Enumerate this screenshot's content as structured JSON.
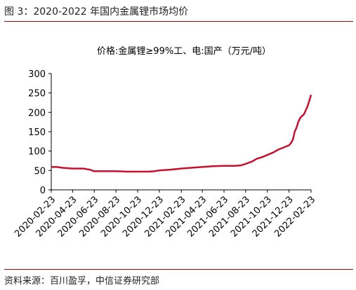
{
  "figure": {
    "title": "图 3：2020-2022 年国内金属锂市场均价",
    "source": "资料来源：百川盈孚，中信证券研究部"
  },
  "colors": {
    "rule": "#b30000",
    "series": "#c8102e",
    "axis": "#000000"
  },
  "chart_data": {
    "type": "line",
    "title": "价格:金属锂≥99%工、电:国产（万元/吨）",
    "xlabel": "",
    "ylabel": "",
    "ylim": [
      0,
      300
    ],
    "yticks": [
      0,
      50,
      100,
      150,
      200,
      250,
      300
    ],
    "xtick_labels": [
      "2020-02-23",
      "2020-04-23",
      "2020-06-23",
      "2020-08-23",
      "2020-10-23",
      "2020-12-23",
      "2021-02-23",
      "2021-04-23",
      "2021-06-23",
      "2021-08-23",
      "2021-10-23",
      "2021-12-23",
      "2022-02-23"
    ],
    "grid": false,
    "legend": "none",
    "series": [
      {
        "name": "价格:金属锂≥99%工、电:国产（万元/吨）",
        "color": "#c8102e",
        "x": [
          "2020-02-23",
          "2020-03-10",
          "2020-03-25",
          "2020-04-23",
          "2020-05-23",
          "2020-06-10",
          "2020-06-23",
          "2020-07-23",
          "2020-08-23",
          "2020-09-23",
          "2020-10-23",
          "2020-11-23",
          "2020-12-10",
          "2020-12-23",
          "2021-01-23",
          "2021-02-23",
          "2021-03-23",
          "2021-04-23",
          "2021-05-23",
          "2021-06-23",
          "2021-07-23",
          "2021-08-10",
          "2021-08-23",
          "2021-09-10",
          "2021-09-23",
          "2021-10-10",
          "2021-10-23",
          "2021-11-10",
          "2021-11-23",
          "2021-12-10",
          "2021-12-23",
          "2021-12-28",
          "2022-01-03",
          "2022-01-08",
          "2022-01-13",
          "2022-01-18",
          "2022-01-23",
          "2022-01-28",
          "2022-02-03",
          "2022-02-08",
          "2022-02-13",
          "2022-02-18",
          "2022-02-23"
        ],
        "values": [
          59,
          59,
          57,
          55,
          55,
          52,
          48,
          48,
          48,
          47,
          47,
          47,
          48,
          50,
          52,
          55,
          57,
          59,
          61,
          62,
          62,
          63,
          67,
          73,
          80,
          85,
          90,
          97,
          104,
          110,
          115,
          120,
          130,
          150,
          160,
          175,
          185,
          190,
          195,
          205,
          215,
          230,
          245
        ]
      }
    ]
  }
}
